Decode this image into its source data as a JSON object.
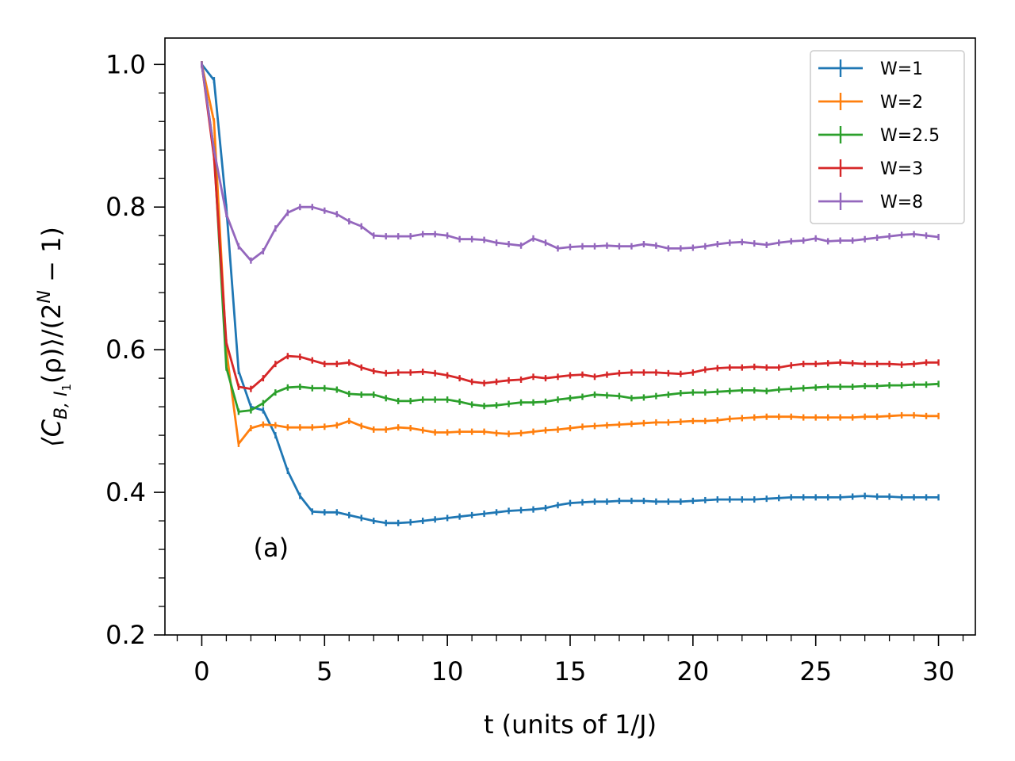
{
  "chart_data": {
    "type": "line",
    "title": "",
    "xlabel": "t (units of 1/J)",
    "ylabel": "⟨C",
    "ylabel_sub": "B, I",
    "ylabel_subsub": "1",
    "ylabel_mid": "(ρ)⟩/(2",
    "ylabel_sup": "N",
    "ylabel_end": " − 1)",
    "xlim": [
      -1.5,
      31.5
    ],
    "ylim": [
      0.2,
      1.037
    ],
    "xticks": [
      0,
      5,
      10,
      15,
      20,
      25,
      30
    ],
    "xtick_labels": [
      "0",
      "5",
      "10",
      "15",
      "20",
      "25",
      "30"
    ],
    "yticks": [
      0.2,
      0.4,
      0.6,
      0.8,
      1.0
    ],
    "ytick_labels": [
      "0.2",
      "0.4",
      "0.6",
      "0.8",
      "1.0"
    ],
    "annotation": "(a)",
    "annotation_pos": {
      "x": 2.1,
      "y": 0.31
    },
    "legend_position": "top-right",
    "x": [
      0,
      0.5,
      1,
      1.5,
      2,
      2.5,
      3,
      3.5,
      4,
      4.5,
      5,
      5.5,
      6,
      6.5,
      7,
      7.5,
      8,
      8.5,
      9,
      9.5,
      10,
      10.5,
      11,
      11.5,
      12,
      12.5,
      13,
      13.5,
      14,
      14.5,
      15,
      15.5,
      16,
      16.5,
      17,
      17.5,
      18,
      18.5,
      19,
      19.5,
      20,
      20.5,
      21,
      21.5,
      22,
      22.5,
      23,
      23.5,
      24,
      24.5,
      25,
      25.5,
      26,
      26.5,
      27,
      27.5,
      28,
      28.5,
      29,
      29.5,
      30
    ],
    "series": [
      {
        "name": "W=1",
        "color": "#1f77b4",
        "values": [
          1.0,
          0.978,
          0.8,
          0.57,
          0.52,
          0.515,
          0.48,
          0.43,
          0.395,
          0.373,
          0.372,
          0.372,
          0.368,
          0.364,
          0.36,
          0.357,
          0.357,
          0.358,
          0.36,
          0.362,
          0.364,
          0.366,
          0.368,
          0.37,
          0.372,
          0.374,
          0.375,
          0.376,
          0.378,
          0.382,
          0.385,
          0.386,
          0.387,
          0.387,
          0.388,
          0.388,
          0.388,
          0.387,
          0.387,
          0.387,
          0.388,
          0.389,
          0.39,
          0.39,
          0.39,
          0.39,
          0.391,
          0.392,
          0.393,
          0.393,
          0.393,
          0.393,
          0.393,
          0.394,
          0.395,
          0.394,
          0.394,
          0.393,
          0.393,
          0.393,
          0.393
        ]
      },
      {
        "name": "W=2",
        "color": "#ff7f0e",
        "values": [
          1.0,
          0.92,
          0.6,
          0.468,
          0.49,
          0.495,
          0.494,
          0.491,
          0.491,
          0.491,
          0.492,
          0.494,
          0.5,
          0.493,
          0.488,
          0.488,
          0.491,
          0.49,
          0.487,
          0.484,
          0.484,
          0.485,
          0.485,
          0.485,
          0.483,
          0.482,
          0.483,
          0.485,
          0.487,
          0.488,
          0.49,
          0.492,
          0.493,
          0.494,
          0.495,
          0.496,
          0.497,
          0.498,
          0.498,
          0.499,
          0.5,
          0.5,
          0.501,
          0.503,
          0.504,
          0.505,
          0.506,
          0.506,
          0.506,
          0.505,
          0.505,
          0.505,
          0.505,
          0.505,
          0.506,
          0.506,
          0.507,
          0.508,
          0.508,
          0.507,
          0.507
        ]
      },
      {
        "name": "W=2.5",
        "color": "#2ca02c",
        "values": [
          1.0,
          0.88,
          0.575,
          0.513,
          0.515,
          0.525,
          0.54,
          0.547,
          0.548,
          0.546,
          0.546,
          0.544,
          0.538,
          0.537,
          0.537,
          0.532,
          0.528,
          0.528,
          0.53,
          0.53,
          0.53,
          0.527,
          0.523,
          0.521,
          0.522,
          0.524,
          0.526,
          0.526,
          0.527,
          0.53,
          0.532,
          0.534,
          0.537,
          0.536,
          0.535,
          0.532,
          0.533,
          0.535,
          0.537,
          0.539,
          0.54,
          0.54,
          0.541,
          0.542,
          0.543,
          0.543,
          0.542,
          0.544,
          0.545,
          0.546,
          0.547,
          0.548,
          0.548,
          0.548,
          0.549,
          0.549,
          0.55,
          0.55,
          0.551,
          0.551,
          0.552
        ]
      },
      {
        "name": "W=3",
        "color": "#d62728",
        "values": [
          1.0,
          0.87,
          0.61,
          0.548,
          0.545,
          0.56,
          0.58,
          0.591,
          0.59,
          0.585,
          0.58,
          0.58,
          0.582,
          0.575,
          0.57,
          0.567,
          0.568,
          0.568,
          0.569,
          0.567,
          0.564,
          0.56,
          0.555,
          0.553,
          0.555,
          0.557,
          0.558,
          0.562,
          0.56,
          0.562,
          0.564,
          0.565,
          0.562,
          0.565,
          0.567,
          0.568,
          0.568,
          0.568,
          0.567,
          0.566,
          0.568,
          0.572,
          0.574,
          0.575,
          0.575,
          0.576,
          0.575,
          0.575,
          0.578,
          0.58,
          0.58,
          0.581,
          0.582,
          0.581,
          0.58,
          0.58,
          0.58,
          0.579,
          0.58,
          0.582,
          0.582
        ]
      },
      {
        "name": "W=8",
        "color": "#9467bd",
        "values": [
          1.0,
          0.88,
          0.79,
          0.745,
          0.725,
          0.738,
          0.77,
          0.792,
          0.8,
          0.8,
          0.795,
          0.79,
          0.78,
          0.773,
          0.76,
          0.759,
          0.759,
          0.759,
          0.762,
          0.762,
          0.76,
          0.755,
          0.755,
          0.754,
          0.75,
          0.748,
          0.746,
          0.756,
          0.75,
          0.742,
          0.744,
          0.745,
          0.745,
          0.746,
          0.745,
          0.745,
          0.748,
          0.746,
          0.742,
          0.742,
          0.743,
          0.745,
          0.748,
          0.75,
          0.751,
          0.749,
          0.747,
          0.75,
          0.752,
          0.753,
          0.756,
          0.752,
          0.753,
          0.753,
          0.755,
          0.757,
          0.759,
          0.761,
          0.762,
          0.76,
          0.758
        ]
      }
    ]
  }
}
